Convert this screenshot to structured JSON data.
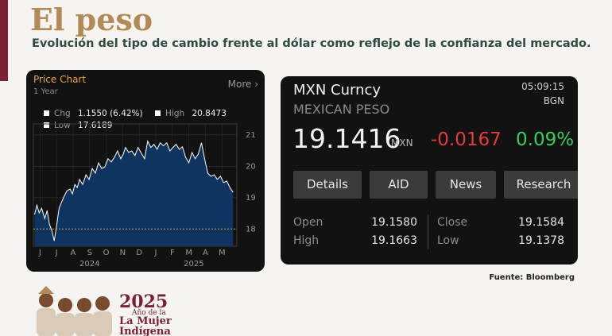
{
  "header": {
    "title": "El peso",
    "subtitle": "Evolución del tipo de cambio frente al dólar como reflejo de la confianza del mercado."
  },
  "price_chart": {
    "title": "Price Chart",
    "period": "1 Year",
    "more": "More",
    "legend": [
      {
        "label": "Chg",
        "value": "1.1550 (6.42%)"
      },
      {
        "label": "High",
        "value": "20.8473"
      },
      {
        "label": "Low",
        "value": "17.6189"
      }
    ]
  },
  "chart_data": {
    "type": "area",
    "color": "#0d3560",
    "line_color": "#ffffff",
    "x": [
      -0.33,
      -0.19,
      -0.05,
      0.1,
      0.29,
      0.43,
      0.57,
      0.72,
      0.86,
      1.0,
      1.15,
      1.29,
      1.44,
      1.63,
      1.82,
      1.96,
      2.11,
      2.25,
      2.39,
      2.58,
      2.78,
      2.97,
      3.16,
      3.35,
      3.54,
      3.73,
      3.92,
      4.11,
      4.31,
      4.5,
      4.69,
      4.88,
      5.02,
      5.17,
      5.36,
      5.55,
      5.74,
      5.93,
      6.12,
      6.32,
      6.51,
      6.7,
      6.89,
      7.08,
      7.27,
      7.46,
      7.66,
      7.85,
      8.04,
      8.23,
      8.42,
      8.61,
      8.8,
      9.0,
      9.19,
      9.38,
      9.57,
      9.76,
      9.95,
      10.14,
      10.33,
      10.53,
      10.72,
      10.91,
      11.1,
      11.29,
      11.48,
      11.67
    ],
    "values": [
      18.46,
      18.76,
      18.51,
      18.66,
      18.33,
      18.59,
      18.15,
      17.95,
      17.62,
      18.08,
      18.66,
      18.84,
      19.02,
      19.22,
      19.27,
      19.12,
      19.42,
      19.32,
      19.58,
      19.42,
      19.73,
      19.58,
      19.93,
      19.78,
      20.11,
      19.93,
      19.98,
      20.24,
      20.14,
      20.29,
      20.49,
      20.24,
      20.37,
      20.6,
      20.44,
      20.49,
      20.34,
      20.6,
      20.42,
      20.24,
      20.8,
      20.6,
      20.7,
      20.54,
      20.75,
      20.65,
      20.75,
      20.49,
      20.6,
      20.7,
      20.54,
      20.62,
      20.29,
      20.11,
      20.44,
      20.24,
      20.39,
      20.75,
      20.24,
      19.78,
      19.68,
      19.73,
      19.58,
      19.68,
      19.48,
      19.53,
      19.32,
      19.17
    ],
    "xlim": [
      -0.4,
      11.9
    ],
    "ylim": [
      17.45,
      21.35
    ],
    "yticks": [
      18,
      19,
      20,
      21
    ],
    "xticks": [
      {
        "value": 0,
        "label": "J"
      },
      {
        "value": 1,
        "label": "J"
      },
      {
        "value": 2,
        "label": "A"
      },
      {
        "value": 3,
        "label": "S"
      },
      {
        "value": 4,
        "label": "O"
      },
      {
        "value": 5,
        "label": "N"
      },
      {
        "value": 6,
        "label": "D"
      },
      {
        "value": 7,
        "label": "J"
      },
      {
        "value": 8,
        "label": "F"
      },
      {
        "value": 9,
        "label": "M"
      },
      {
        "value": 10,
        "label": "A"
      },
      {
        "value": 11,
        "label": "M"
      }
    ],
    "xticks2": [
      {
        "value": 3,
        "label": "2024"
      },
      {
        "value": 9.3,
        "label": "2025"
      }
    ],
    "reference_line": 18,
    "grid": true
  },
  "quote": {
    "symbol": "MXN Curncy",
    "name": "MEXICAN PESO",
    "time": "05:09:15",
    "source": "BGN",
    "price": "19.1416",
    "currency": "MXN",
    "change": "-0.0167",
    "change_pct": "0.09%",
    "buttons": [
      "Details",
      "AID",
      "News",
      "Research"
    ],
    "stats": [
      {
        "label": "Open",
        "value": "19.1580"
      },
      {
        "label": "Close",
        "value": "19.1584"
      },
      {
        "label": "High",
        "value": "19.1663"
      },
      {
        "label": "Low",
        "value": "19.1378"
      }
    ]
  },
  "source": "Fuente: Bloomberg",
  "logo": {
    "year": "2025",
    "line1": "Año de la",
    "line2": "La Mujer",
    "line3": "Indígena"
  }
}
